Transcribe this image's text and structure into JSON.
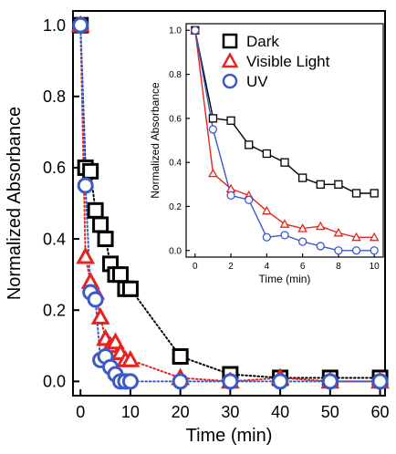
{
  "chart_data": [
    {
      "type": "scatter",
      "xlabel": "Time (min)",
      "ylabel": "Normalized Absorbance",
      "xlim": [
        -1.5,
        61
      ],
      "ylim": [
        -0.04,
        1.04
      ],
      "xticks": [
        "0",
        "10",
        "20",
        "30",
        "40",
        "50",
        "60"
      ],
      "yticks": [
        "0.0",
        "0.2",
        "0.4",
        "0.6",
        "0.8",
        "1.0"
      ],
      "grid": false,
      "legend": "top-right",
      "series": [
        {
          "name": "Dark",
          "color": "#000000",
          "marker": "square",
          "line": "dotted",
          "x": [
            0,
            1,
            2,
            3,
            4,
            5,
            6,
            7,
            8,
            9,
            10,
            20,
            30,
            40,
            50,
            60
          ],
          "y": [
            1.0,
            0.6,
            0.59,
            0.48,
            0.44,
            0.4,
            0.33,
            0.3,
            0.3,
            0.26,
            0.26,
            0.07,
            0.02,
            0.01,
            0.01,
            0.01
          ]
        },
        {
          "name": "Visible Light",
          "color": "#e8231f",
          "marker": "triangle",
          "line": "dotted",
          "x": [
            0,
            1,
            2,
            3,
            4,
            5,
            6,
            7,
            8,
            9,
            10,
            20,
            30,
            40,
            50,
            60
          ],
          "y": [
            1.0,
            0.35,
            0.28,
            0.25,
            0.18,
            0.12,
            0.1,
            0.11,
            0.08,
            0.06,
            0.06,
            0.01,
            0.0,
            0.01,
            0.0,
            0.0
          ]
        },
        {
          "name": "UV",
          "color": "#3a5ac8",
          "marker": "circle",
          "line": "dotted",
          "x": [
            0,
            1,
            2,
            3,
            4,
            5,
            6,
            7,
            8,
            9,
            10,
            20,
            30,
            40,
            50,
            60
          ],
          "y": [
            1.0,
            0.55,
            0.25,
            0.23,
            0.06,
            0.07,
            0.04,
            0.02,
            0.0,
            0.0,
            0.0,
            0.0,
            0.0,
            0.0,
            0.0,
            0.0
          ]
        }
      ]
    },
    {
      "type": "line",
      "xlabel": "Time (min)",
      "ylabel": "Normalized Absorbance",
      "xlim": [
        -0.5,
        10.5
      ],
      "ylim": [
        -0.03,
        1.03
      ],
      "xticks": [
        "0",
        "2",
        "4",
        "6",
        "8",
        "10"
      ],
      "yticks": [
        "0.0",
        "0.2",
        "0.4",
        "0.6",
        "0.8",
        "1.0"
      ],
      "grid": false,
      "series": [
        {
          "name": "Dark",
          "color": "#000000",
          "marker": "square",
          "line": "solid",
          "x": [
            0,
            1,
            2,
            3,
            4,
            5,
            6,
            7,
            8,
            9,
            10
          ],
          "y": [
            1.0,
            0.6,
            0.59,
            0.48,
            0.44,
            0.4,
            0.33,
            0.3,
            0.3,
            0.26,
            0.26
          ]
        },
        {
          "name": "Visible Light",
          "color": "#e8231f",
          "marker": "triangle",
          "line": "solid",
          "x": [
            0,
            1,
            2,
            3,
            4,
            5,
            6,
            7,
            8,
            9,
            10
          ],
          "y": [
            1.0,
            0.35,
            0.28,
            0.25,
            0.18,
            0.12,
            0.1,
            0.11,
            0.08,
            0.06,
            0.06
          ]
        },
        {
          "name": "UV",
          "color": "#3a5ac8",
          "marker": "circle",
          "line": "solid",
          "x": [
            0,
            1,
            2,
            3,
            4,
            5,
            6,
            7,
            8,
            9,
            10
          ],
          "y": [
            1.0,
            0.55,
            0.25,
            0.23,
            0.06,
            0.07,
            0.04,
            0.02,
            0.0,
            0.0,
            0.0
          ]
        }
      ]
    }
  ]
}
